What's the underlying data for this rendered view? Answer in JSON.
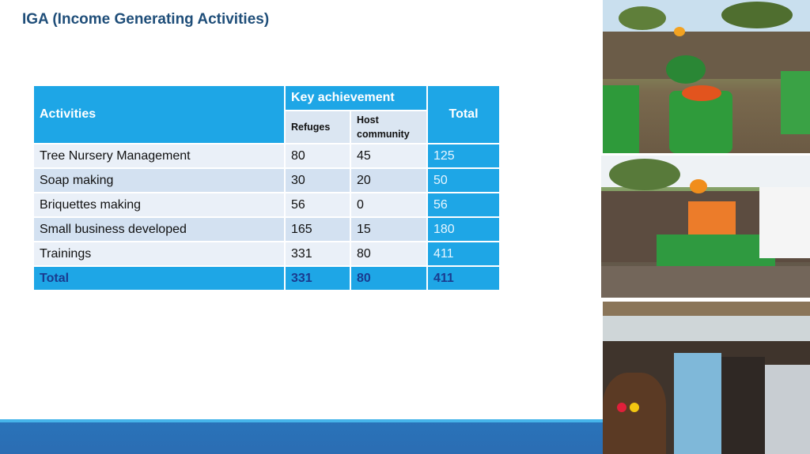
{
  "page": {
    "title": "IGA (Income Generating Activities)"
  },
  "table": {
    "headers": {
      "activities": "Activities",
      "key_achievement": "Key achievement",
      "total": "Total",
      "refuges": "Refuges",
      "host_community": "Host community"
    },
    "rows": [
      {
        "activity": "Tree Nursery Management",
        "refuges": "80",
        "host": "45",
        "total": "125"
      },
      {
        "activity": "Soap making",
        "refuges": "30",
        "host": "20",
        "total": "50"
      },
      {
        "activity": "Briquettes making",
        "refuges": "56",
        "host": "0",
        "total": "56"
      },
      {
        "activity": "Small business developed",
        "refuges": "165",
        "host": "15",
        "total": "180"
      },
      {
        "activity": "Trainings",
        "refuges": "331",
        "host": "80",
        "total": "411"
      }
    ],
    "total_row": {
      "label": "Total",
      "refuges": "331",
      "host": "80",
      "total": "411"
    }
  },
  "colors": {
    "title": "#1f4e79",
    "header_blue": "#1ea6e6",
    "row_light": "#eaf0f8",
    "row_dark": "#d3e1f1",
    "footer_band": "#2b6db3"
  }
}
